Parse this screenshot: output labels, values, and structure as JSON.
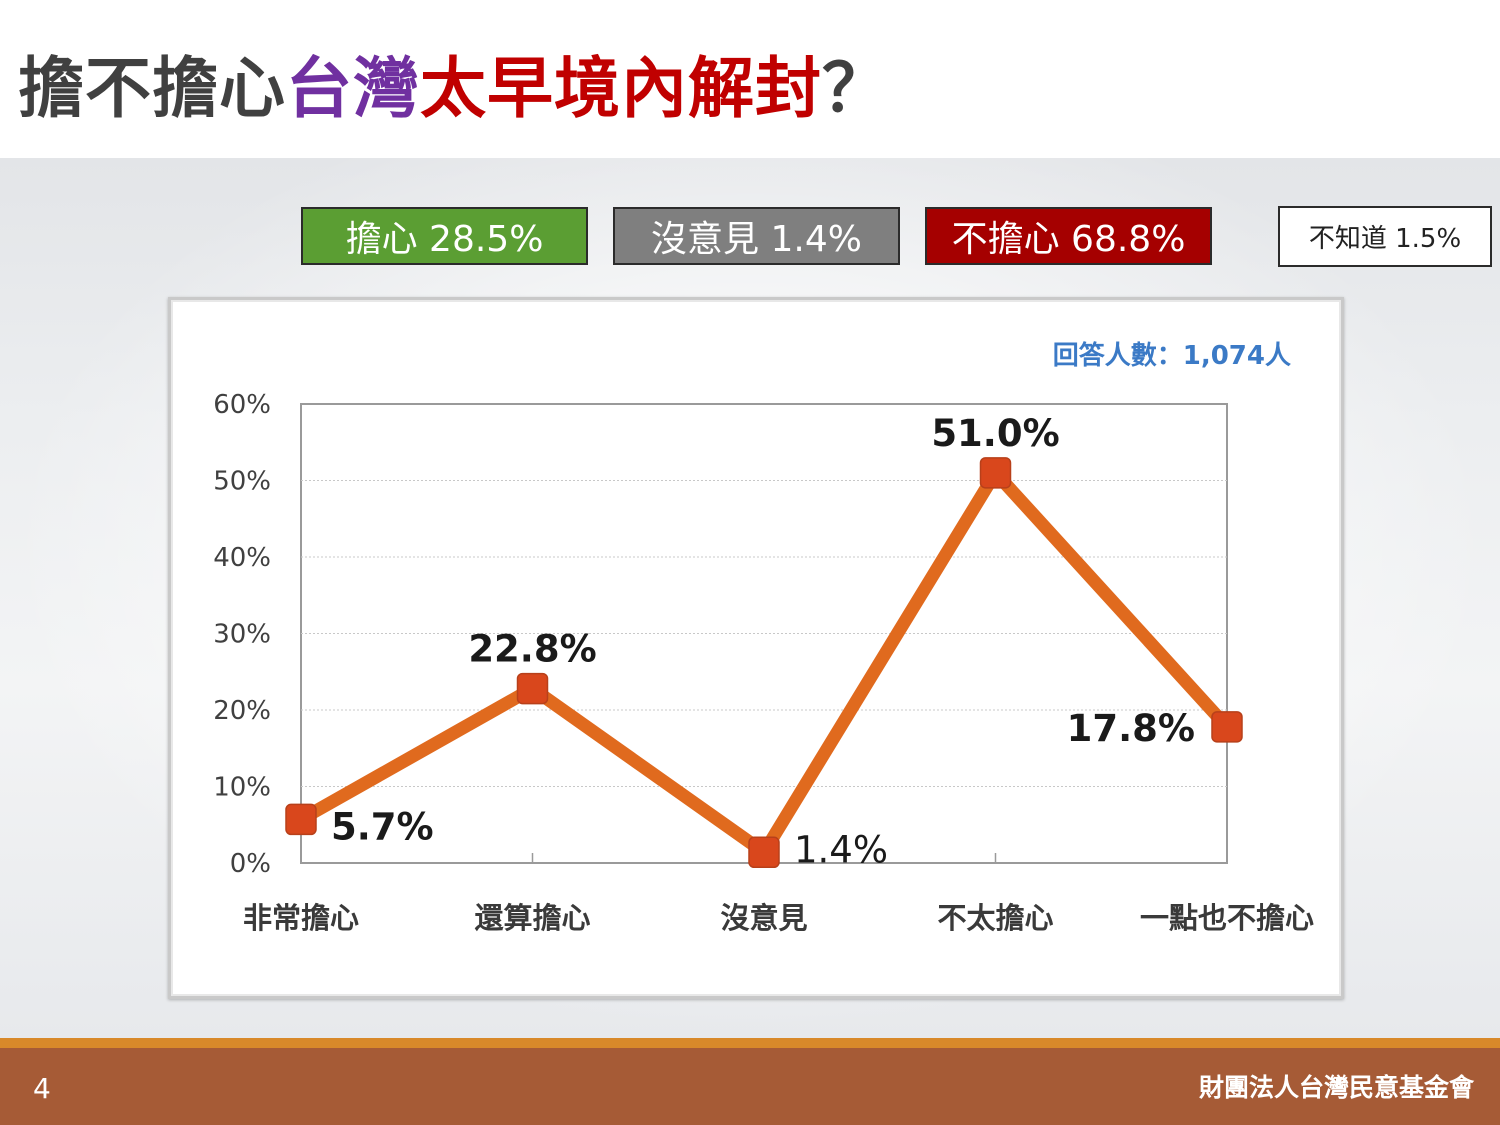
{
  "title": {
    "part1": "擔不擔心",
    "part2": "台灣",
    "part3": "太早境內解封",
    "part4": "？"
  },
  "summary": {
    "worried": "擔心 28.5%",
    "no_opinion": "沒意見 1.4%",
    "not_worried": "不擔心 68.8%",
    "dont_know": "不知道 1.5%"
  },
  "colors": {
    "worried": "#5b9e33",
    "no_opinion": "#7f7f7f",
    "not_worried": "#a50000",
    "line": "#e06a1e",
    "marker": "#d9471c",
    "title_purple": "#7030a0",
    "title_red": "#c00000",
    "footer": "#a65b36",
    "footer_accent": "#d8892a"
  },
  "chart_data": {
    "type": "line",
    "categories": [
      "非常擔心",
      "還算擔心",
      "沒意見",
      "不太擔心",
      "一點也不擔心"
    ],
    "values": [
      5.7,
      22.8,
      1.4,
      51.0,
      17.8
    ],
    "value_labels": [
      "5.7%",
      "22.8%",
      "1.4%",
      "51.0%",
      "17.8%"
    ],
    "yticks": [
      "0%",
      "10%",
      "20%",
      "30%",
      "40%",
      "50%",
      "60%"
    ],
    "ylim": [
      0,
      60
    ],
    "grid": true,
    "annotation": "回答人數：1,074人"
  },
  "footer": {
    "page": "4",
    "org": "財團法人台灣民意基金會"
  }
}
